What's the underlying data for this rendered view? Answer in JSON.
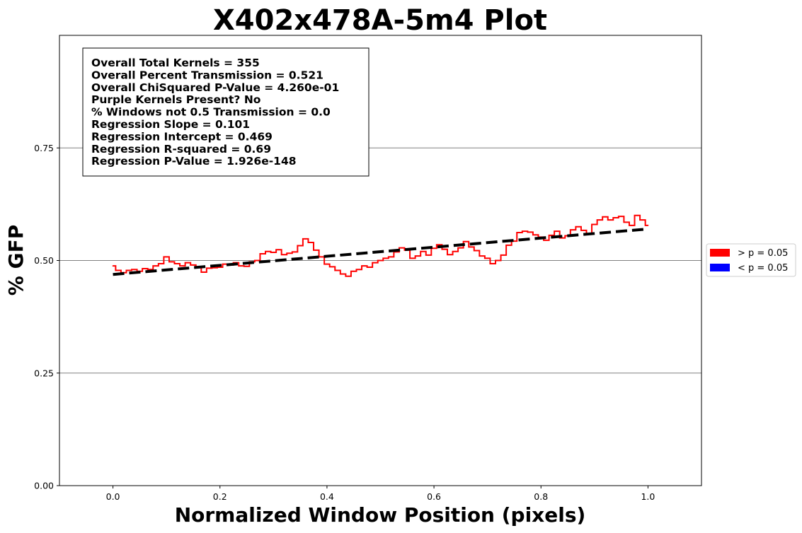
{
  "chart_data": {
    "type": "line",
    "title": "X402x478A-5m4 Plot",
    "xlabel": "Normalized Window Position (pixels)",
    "ylabel": "% GFP",
    "xlim": [
      -0.1,
      1.1
    ],
    "ylim": [
      0.0,
      1.0
    ],
    "xticks": [
      0.0,
      0.2,
      0.4,
      0.6,
      0.8,
      1.0
    ],
    "xtick_labels": [
      "0.0",
      "0.2",
      "0.4",
      "0.6",
      "0.8",
      "1.0"
    ],
    "yticks": [
      0.0,
      0.25,
      0.5,
      0.75
    ],
    "ytick_labels": [
      "0.00",
      "0.25",
      "0.50",
      "0.75"
    ],
    "grid": "horizontal",
    "stats": [
      "Overall Total Kernels = 355",
      "Overall Percent Transmission = 0.521",
      "Overall ChiSquared P-Value = 4.260e-01",
      "Purple Kernels Present? No",
      "% Windows not 0.5 Transmission = 0.0",
      "Regression Slope = 0.101",
      "Regression Intercept = 0.469",
      "Regression R-squared = 0.69",
      "Regression P-Value = 1.926e-148"
    ],
    "legend": {
      "placement": "right",
      "entries": [
        {
          "label": "> p = 0.05",
          "color": "#ff0000"
        },
        {
          "label": "< p = 0.05",
          "color": "#0000ff"
        }
      ]
    },
    "series": [
      {
        "color": "#ff0000",
        "style": "solid",
        "x": [
          0.0,
          0.01,
          0.02,
          0.03,
          0.04,
          0.05,
          0.06,
          0.07,
          0.08,
          0.09,
          0.1,
          0.11,
          0.12,
          0.13,
          0.14,
          0.15,
          0.16,
          0.17,
          0.18,
          0.19,
          0.2,
          0.21,
          0.22,
          0.23,
          0.24,
          0.25,
          0.26,
          0.27,
          0.28,
          0.29,
          0.3,
          0.31,
          0.32,
          0.33,
          0.34,
          0.35,
          0.36,
          0.37,
          0.38,
          0.39,
          0.4,
          0.41,
          0.42,
          0.43,
          0.44,
          0.45,
          0.46,
          0.47,
          0.48,
          0.49,
          0.5,
          0.51,
          0.52,
          0.53,
          0.54,
          0.55,
          0.56,
          0.57,
          0.58,
          0.59,
          0.6,
          0.61,
          0.62,
          0.63,
          0.64,
          0.65,
          0.66,
          0.67,
          0.68,
          0.69,
          0.7,
          0.71,
          0.72,
          0.73,
          0.74,
          0.75,
          0.76,
          0.77,
          0.78,
          0.79,
          0.8,
          0.81,
          0.82,
          0.83,
          0.84,
          0.85,
          0.86,
          0.87,
          0.88,
          0.89,
          0.9,
          0.91,
          0.92,
          0.93,
          0.94,
          0.95,
          0.96,
          0.97,
          0.98,
          0.99,
          1.0
        ],
        "y": [
          0.488,
          0.478,
          0.473,
          0.478,
          0.48,
          0.476,
          0.482,
          0.48,
          0.488,
          0.493,
          0.508,
          0.497,
          0.493,
          0.488,
          0.495,
          0.49,
          0.485,
          0.474,
          0.483,
          0.484,
          0.485,
          0.492,
          0.49,
          0.495,
          0.488,
          0.487,
          0.497,
          0.5,
          0.515,
          0.52,
          0.518,
          0.524,
          0.513,
          0.516,
          0.519,
          0.533,
          0.548,
          0.54,
          0.523,
          0.508,
          0.492,
          0.486,
          0.478,
          0.47,
          0.465,
          0.476,
          0.48,
          0.488,
          0.485,
          0.495,
          0.5,
          0.505,
          0.508,
          0.519,
          0.528,
          0.523,
          0.505,
          0.51,
          0.52,
          0.512,
          0.527,
          0.535,
          0.525,
          0.513,
          0.52,
          0.528,
          0.542,
          0.53,
          0.522,
          0.51,
          0.505,
          0.493,
          0.5,
          0.512,
          0.534,
          0.543,
          0.562,
          0.565,
          0.563,
          0.557,
          0.552,
          0.545,
          0.556,
          0.565,
          0.55,
          0.555,
          0.568,
          0.575,
          0.567,
          0.558,
          0.58,
          0.59,
          0.597,
          0.59,
          0.595,
          0.598,
          0.585,
          0.578,
          0.6,
          0.59,
          0.578
        ]
      },
      {
        "color": "#000000",
        "style": "dashed",
        "x": [
          0.0,
          1.0
        ],
        "y": [
          0.469,
          0.57
        ]
      }
    ]
  }
}
